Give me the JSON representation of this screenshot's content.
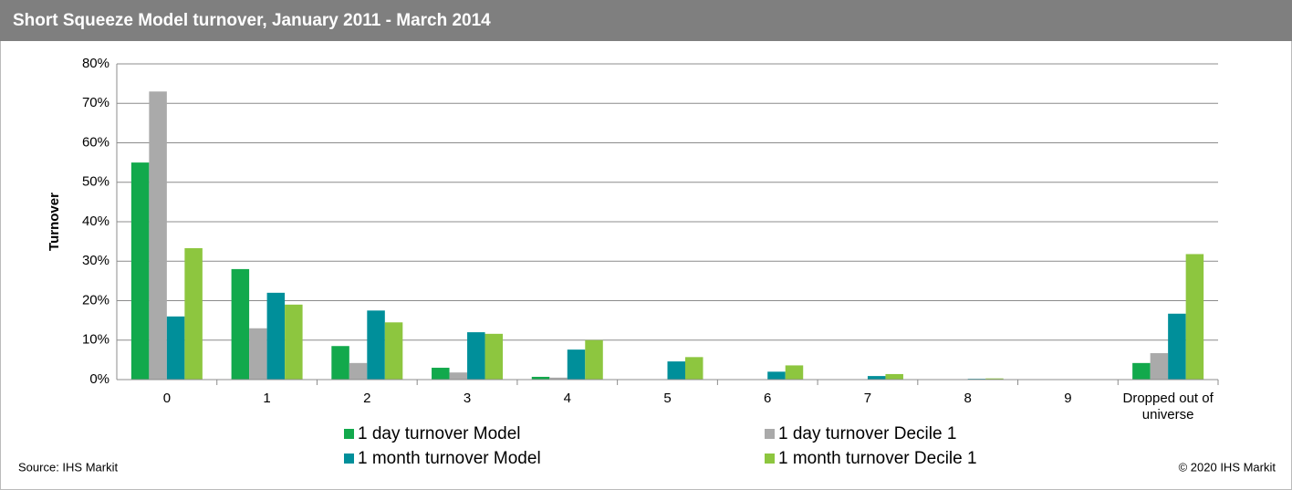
{
  "chart_data": {
    "type": "bar",
    "title": "Short Squeeze Model turnover, January 2011 - March 2014",
    "y_label": "Turnover",
    "source": "Source: IHS Markit",
    "copyright": "© 2020 IHS Markit",
    "categories": [
      "0",
      "1",
      "2",
      "3",
      "4",
      "5",
      "6",
      "7",
      "8",
      "9",
      "Dropped out of universe"
    ],
    "series": [
      {
        "name": "1 day turnover Model",
        "color": "#12a94c",
        "values": [
          55,
          28,
          8.5,
          3,
          0.7,
          0,
          0,
          0,
          0,
          0,
          4.2
        ]
      },
      {
        "name": "1 day turnover Decile 1",
        "color": "#aaaaaa",
        "values": [
          73,
          13,
          4.2,
          1.8,
          0.5,
          0,
          0,
          0,
          0,
          0,
          6.7
        ]
      },
      {
        "name": "1 month turnover Model",
        "color": "#008f9a",
        "values": [
          16,
          22,
          17.5,
          12,
          7.6,
          4.6,
          2,
          0.9,
          0.2,
          0,
          16.7
        ]
      },
      {
        "name": "1 month turnover Decile 1",
        "color": "#8dc63f",
        "values": [
          33.3,
          19,
          14.5,
          11.6,
          10,
          5.7,
          3.6,
          1.4,
          0.3,
          0,
          31.8
        ]
      }
    ],
    "ylim": [
      0,
      80
    ],
    "yticks": [
      {
        "value": 0,
        "label": "0%"
      },
      {
        "value": 10,
        "label": "10%"
      },
      {
        "value": 20,
        "label": "20%"
      },
      {
        "value": 30,
        "label": "30%"
      },
      {
        "value": 40,
        "label": "40%"
      },
      {
        "value": 50,
        "label": "50%"
      },
      {
        "value": 60,
        "label": "60%"
      },
      {
        "value": 70,
        "label": "70%"
      },
      {
        "value": 80,
        "label": "80%"
      }
    ],
    "grid": true
  }
}
